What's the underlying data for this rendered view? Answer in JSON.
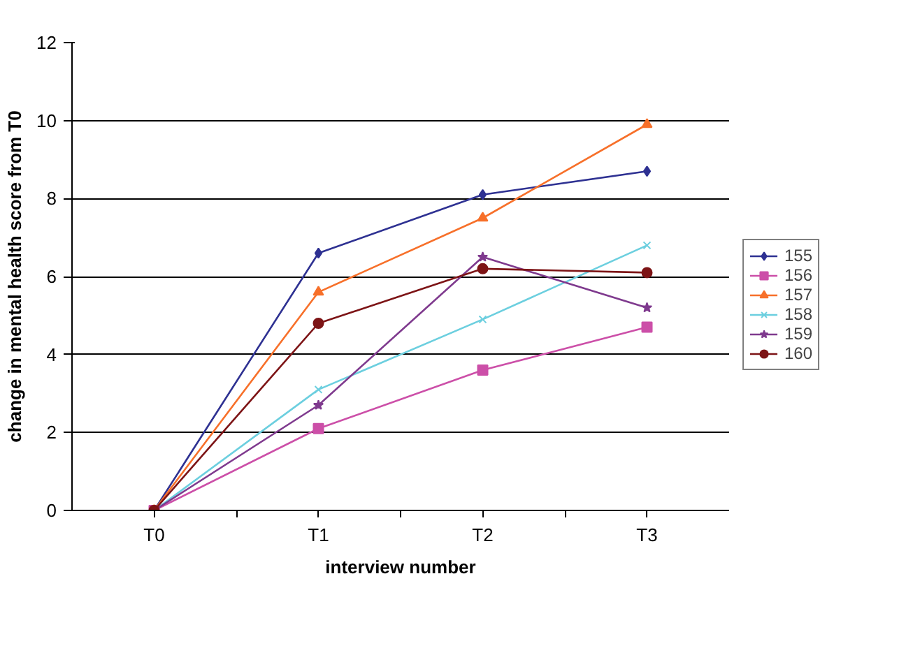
{
  "chart_data": {
    "type": "line",
    "xlabel": "interview number",
    "ylabel": "change in mental health score from T0",
    "categories": [
      "T0",
      "T1",
      "T2",
      "T3"
    ],
    "ylim": [
      0,
      12
    ],
    "yticks": [
      0,
      2,
      4,
      6,
      8,
      10,
      12
    ],
    "grid": "y",
    "legend": "right",
    "line_style": "solid",
    "series": [
      {
        "name": "155",
        "color": "#2e3192",
        "marker": "diamond",
        "values": [
          0,
          6.6,
          8.1,
          8.7
        ]
      },
      {
        "name": "156",
        "color": "#cc4fa8",
        "marker": "square",
        "values": [
          0,
          2.1,
          3.6,
          4.7
        ]
      },
      {
        "name": "157",
        "color": "#f7702a",
        "marker": "triangle",
        "values": [
          0,
          5.6,
          7.5,
          9.9
        ]
      },
      {
        "name": "158",
        "color": "#6ccfdf",
        "marker": "cross",
        "values": [
          0,
          3.1,
          4.9,
          6.8
        ]
      },
      {
        "name": "159",
        "color": "#7f3a8e",
        "marker": "star",
        "values": [
          0,
          2.7,
          6.5,
          5.2
        ]
      },
      {
        "name": "160",
        "color": "#7d1416",
        "marker": "circle",
        "values": [
          0,
          4.8,
          6.2,
          6.1
        ]
      }
    ]
  }
}
